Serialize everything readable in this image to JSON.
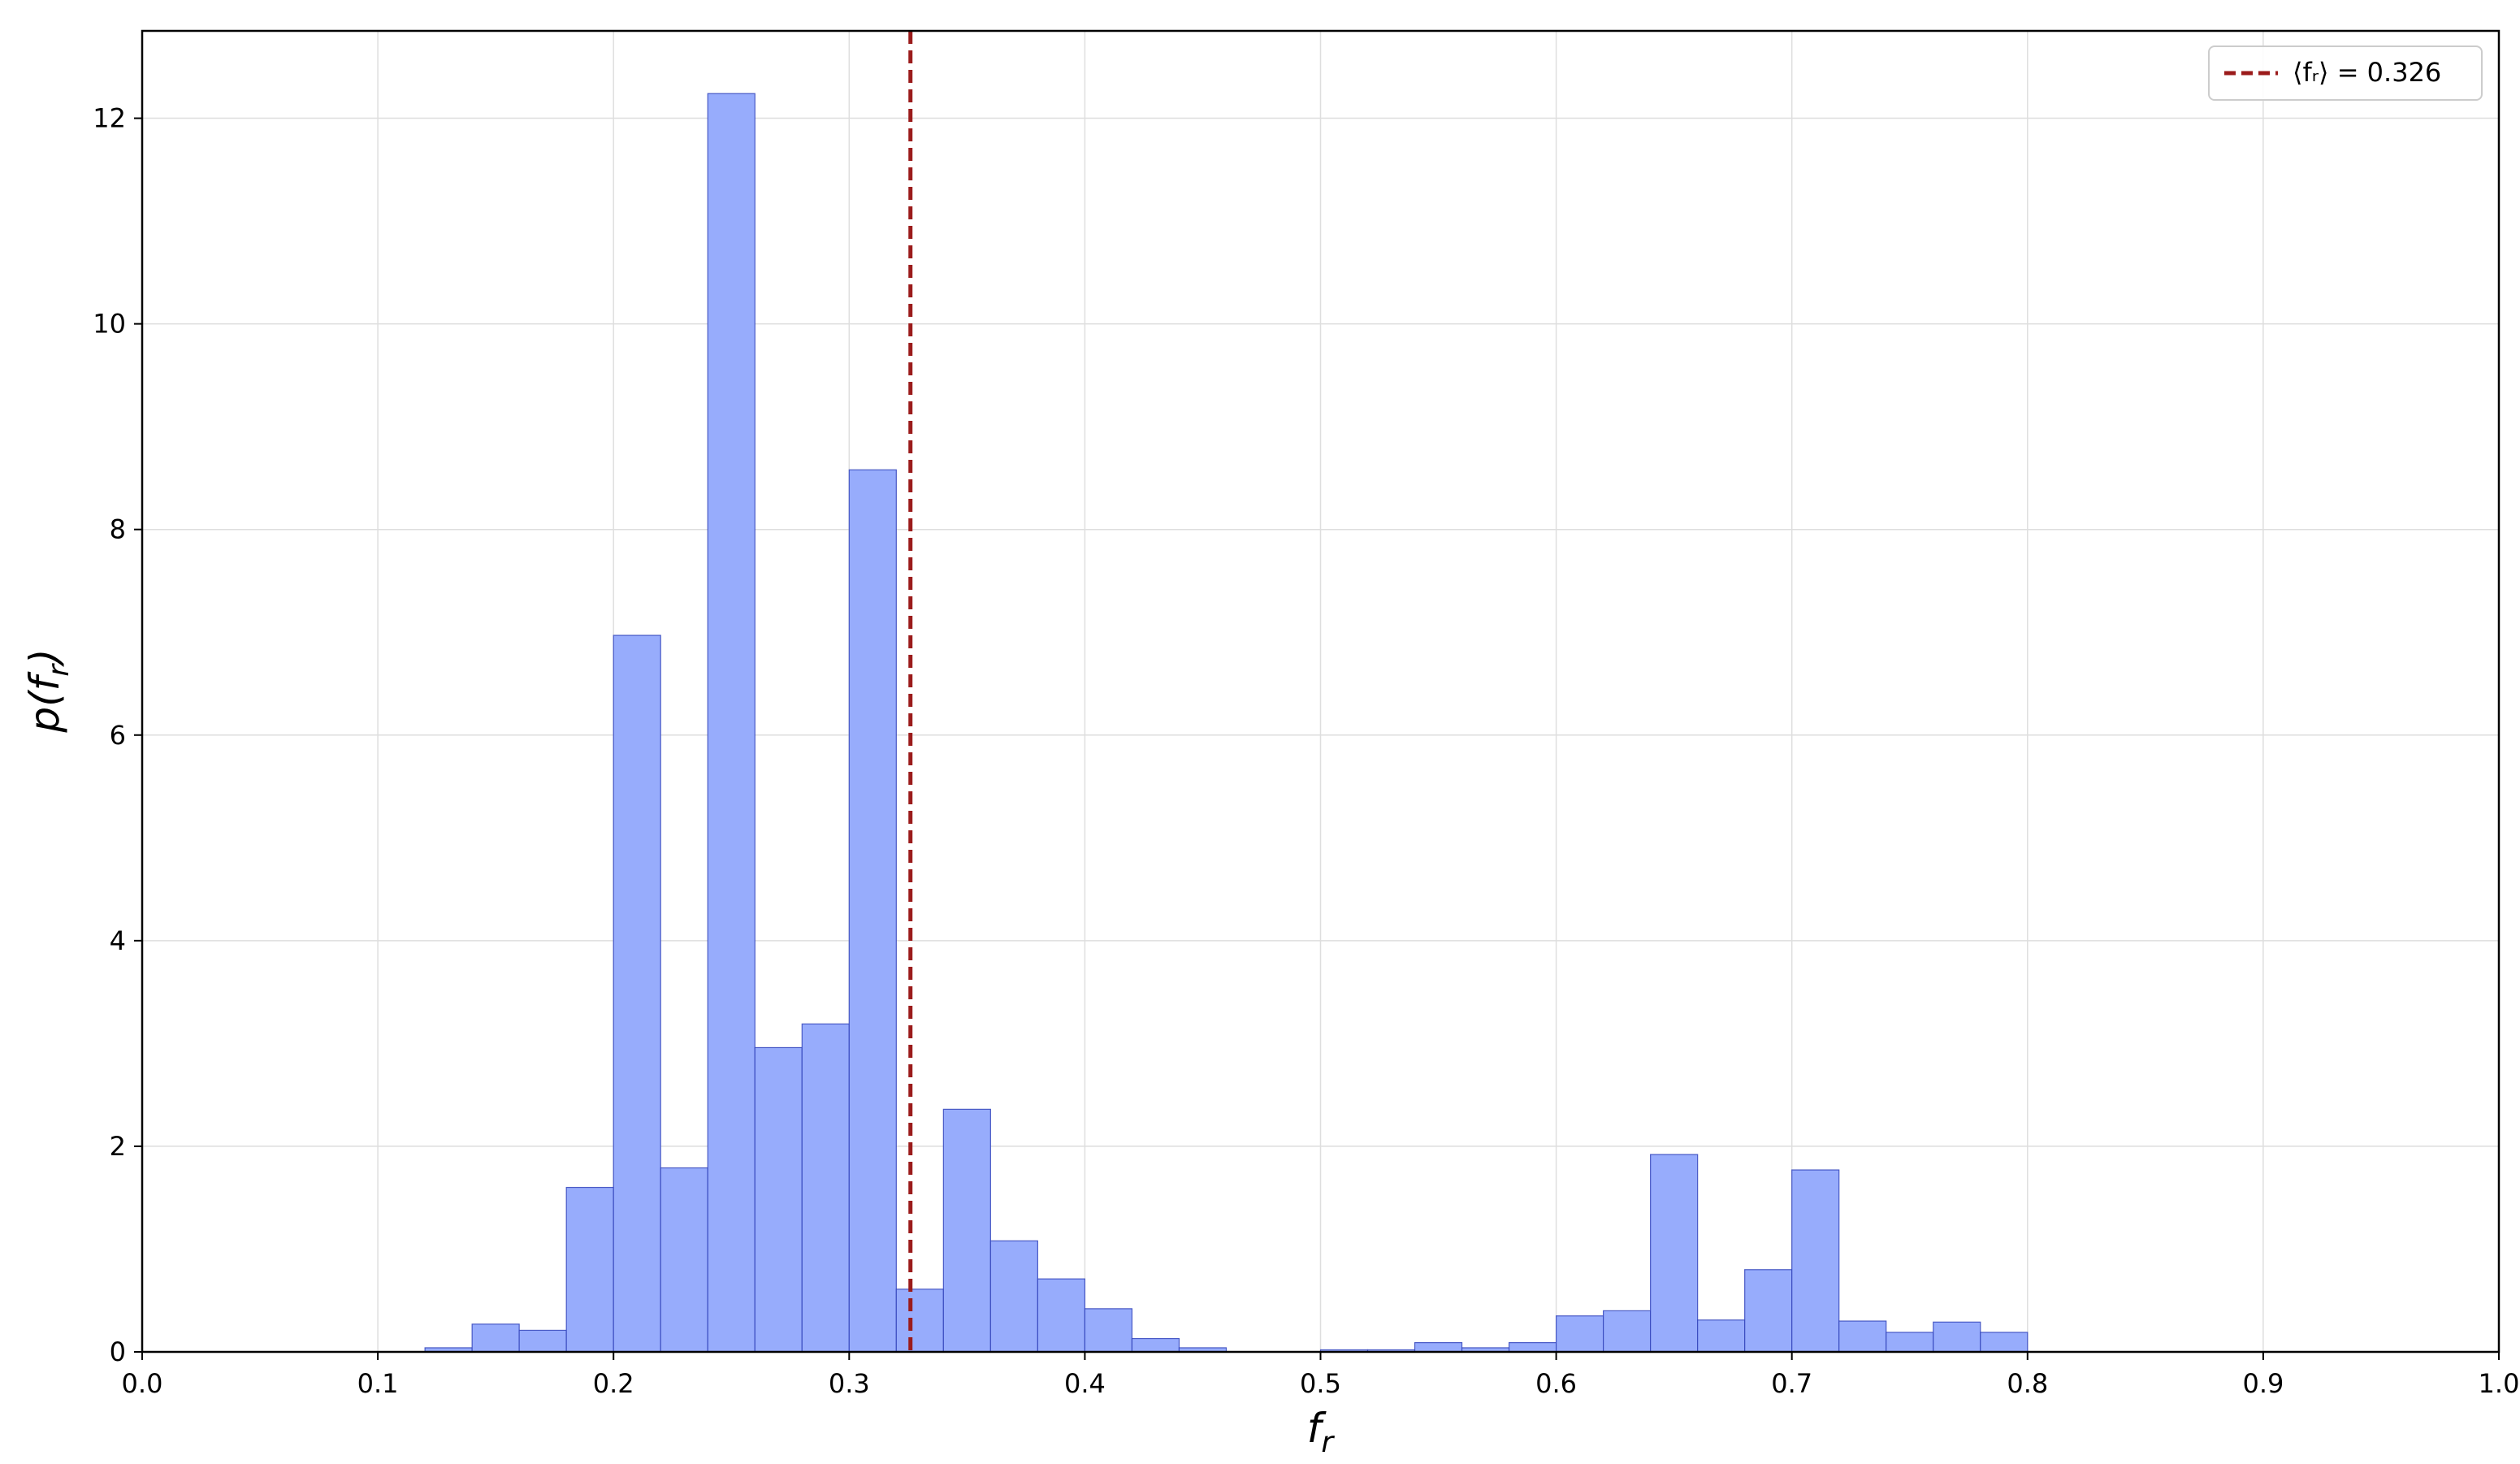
{
  "chart_data": {
    "type": "bar",
    "histogram": true,
    "xlabel": {
      "main": "f",
      "sub": "r"
    },
    "ylabel": {
      "prefix": "p(",
      "main": "f",
      "sub": "r",
      "suffix": ")"
    },
    "xlim": [
      0.0,
      1.0
    ],
    "ylim": [
      0,
      12.85
    ],
    "xticks": [
      "0.0",
      "0.1",
      "0.2",
      "0.3",
      "0.4",
      "0.5",
      "0.6",
      "0.7",
      "0.8",
      "0.9",
      "1.0"
    ],
    "yticks": [
      "0",
      "2",
      "4",
      "6",
      "8",
      "10",
      "12"
    ],
    "grid": true,
    "bin_width": 0.02,
    "bins": [
      {
        "x0": 0.12,
        "value": 0.04
      },
      {
        "x0": 0.14,
        "value": 0.27
      },
      {
        "x0": 0.16,
        "value": 0.21
      },
      {
        "x0": 0.18,
        "value": 1.6
      },
      {
        "x0": 0.2,
        "value": 6.97
      },
      {
        "x0": 0.22,
        "value": 1.79
      },
      {
        "x0": 0.24,
        "value": 12.24
      },
      {
        "x0": 0.26,
        "value": 2.96
      },
      {
        "x0": 0.28,
        "value": 3.19
      },
      {
        "x0": 0.3,
        "value": 8.58
      },
      {
        "x0": 0.32,
        "value": 0.61
      },
      {
        "x0": 0.34,
        "value": 2.36
      },
      {
        "x0": 0.36,
        "value": 1.08
      },
      {
        "x0": 0.38,
        "value": 0.71
      },
      {
        "x0": 0.4,
        "value": 0.42
      },
      {
        "x0": 0.42,
        "value": 0.13
      },
      {
        "x0": 0.44,
        "value": 0.04
      },
      {
        "x0": 0.5,
        "value": 0.02
      },
      {
        "x0": 0.52,
        "value": 0.02
      },
      {
        "x0": 0.54,
        "value": 0.09
      },
      {
        "x0": 0.56,
        "value": 0.04
      },
      {
        "x0": 0.58,
        "value": 0.09
      },
      {
        "x0": 0.6,
        "value": 0.35
      },
      {
        "x0": 0.62,
        "value": 0.4
      },
      {
        "x0": 0.64,
        "value": 1.92
      },
      {
        "x0": 0.66,
        "value": 0.31
      },
      {
        "x0": 0.68,
        "value": 0.8
      },
      {
        "x0": 0.7,
        "value": 1.77
      },
      {
        "x0": 0.72,
        "value": 0.3
      },
      {
        "x0": 0.74,
        "value": 0.19
      },
      {
        "x0": 0.76,
        "value": 0.29
      },
      {
        "x0": 0.78,
        "value": 0.19
      }
    ],
    "mean_line": {
      "x": 0.326,
      "label": "⟨fᵣ⟩ = 0.326",
      "color": "#9b1b1b",
      "style": "dashed"
    },
    "legend_position": "top-right",
    "colors": {
      "bar_fill": "#97acfc",
      "bar_edge": "#3344bb",
      "grid": "#dedede",
      "axes": "#000000"
    }
  }
}
